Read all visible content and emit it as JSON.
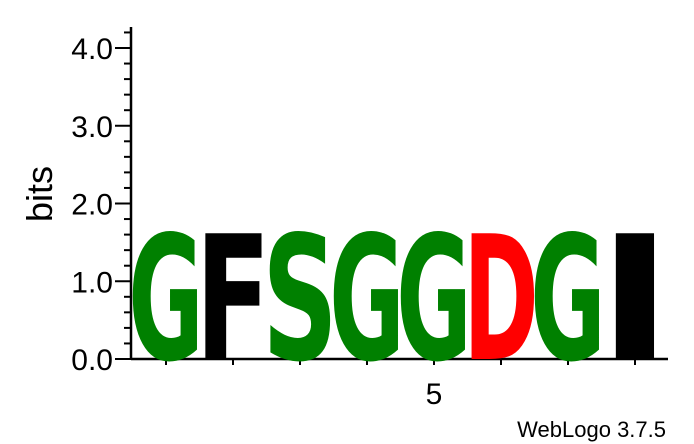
{
  "chart_data": {
    "type": "sequence-logo",
    "ylabel": "bits",
    "ylim": [
      0,
      4.2
    ],
    "yticks": [
      {
        "value": 0.0,
        "label": "0.0"
      },
      {
        "value": 1.0,
        "label": "1.0"
      },
      {
        "value": 2.0,
        "label": "2.0"
      },
      {
        "value": 3.0,
        "label": "3.0"
      },
      {
        "value": 4.0,
        "label": "4.0"
      }
    ],
    "positions": [
      1,
      2,
      3,
      4,
      5,
      6,
      7,
      8
    ],
    "xtick_labels": [
      {
        "position": 5,
        "label": "5"
      }
    ],
    "columns": [
      {
        "position": 1,
        "letter": "G",
        "bits": 1.62,
        "color": "#008000"
      },
      {
        "position": 2,
        "letter": "F",
        "bits": 1.62,
        "color": "#000000"
      },
      {
        "position": 3,
        "letter": "S",
        "bits": 1.62,
        "color": "#008000"
      },
      {
        "position": 4,
        "letter": "G",
        "bits": 1.62,
        "color": "#008000"
      },
      {
        "position": 5,
        "letter": "G",
        "bits": 1.62,
        "color": "#008000"
      },
      {
        "position": 6,
        "letter": "D",
        "bits": 1.62,
        "color": "#ff0000"
      },
      {
        "position": 7,
        "letter": "G",
        "bits": 1.62,
        "color": "#008000"
      },
      {
        "position": 8,
        "letter": "I",
        "bits": 1.62,
        "color": "#000000"
      }
    ],
    "footer": "WebLogo 3.7.5"
  }
}
